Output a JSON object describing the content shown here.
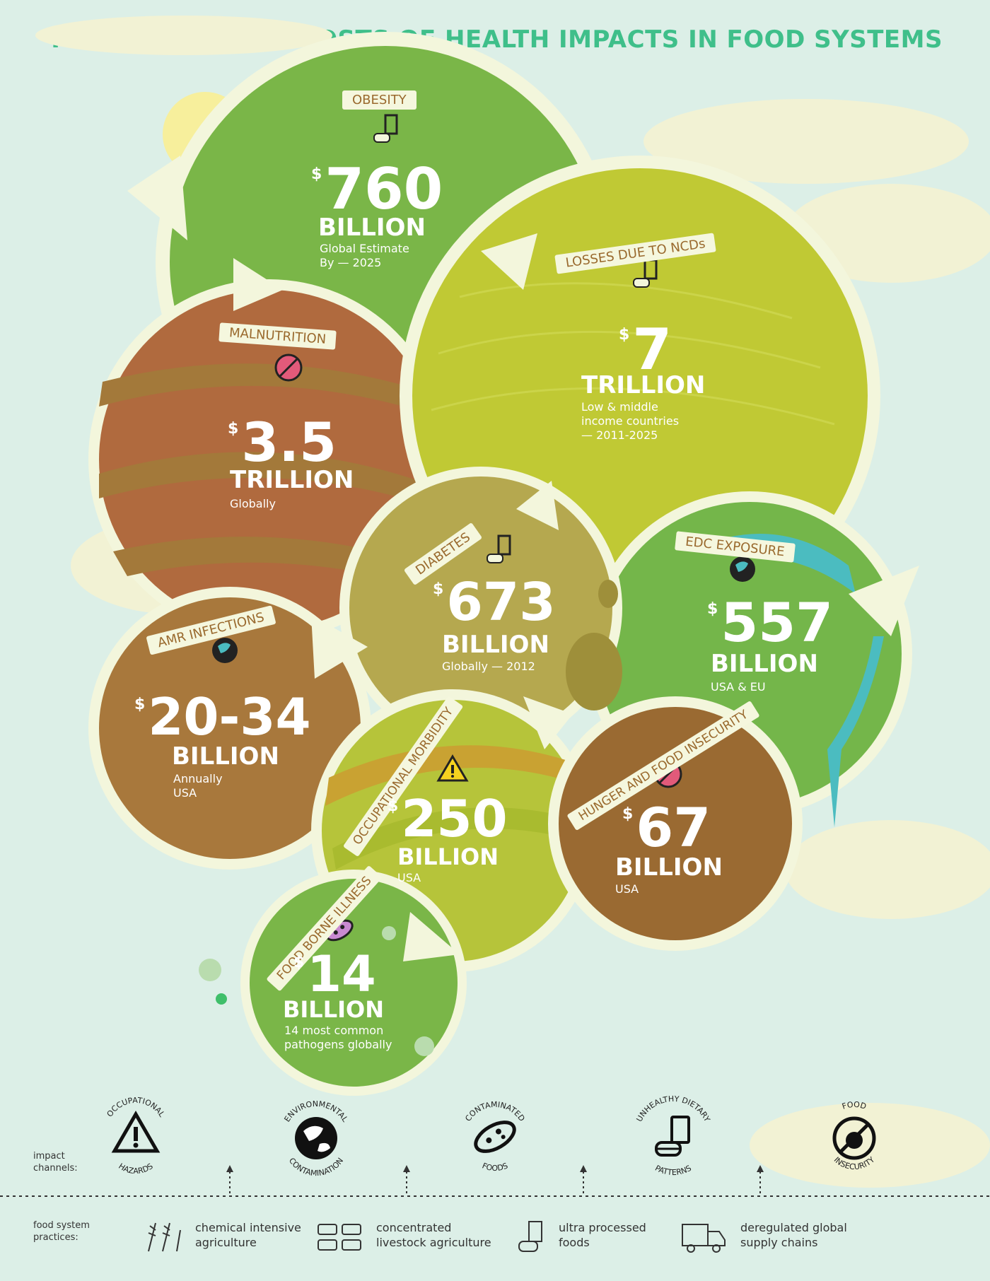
{
  "title": "THE BALLOONING COSTS OF HEALTH IMPACTS IN FOOD SYSTEMS",
  "currency_symbol": "$",
  "colors": {
    "background": "#dcefe7",
    "title": "#3fbf8a",
    "obesity": "#7ab648",
    "ncds": "#c0c934",
    "malnutrition": "#b06a3e",
    "diabetes": "#b5a84f",
    "edc": "#74b64a",
    "amr": "#a8783c",
    "occupational": "#b6c43a",
    "hunger": "#9a6a32",
    "foodborne": "#7ab648",
    "ring": "#f3f6dc",
    "water": "#4bbcc0"
  },
  "bubbles": {
    "obesity": {
      "label": "OBESITY",
      "amount": "760",
      "unit": "BILLION",
      "note": "Global Estimate\nBy — 2025",
      "icon": "unhealthy-diet-icon"
    },
    "ncds": {
      "label": "LOSSES DUE TO NCDs",
      "amount": "7",
      "unit": "TRILLION",
      "note": "Low & middle\nincome countries\n— 2011-2025",
      "icon": "unhealthy-diet-icon"
    },
    "malnutrition": {
      "label": "MALNUTRITION",
      "amount": "3.5",
      "unit": "TRILLION",
      "note": "Globally",
      "icon": "food-insecurity-icon"
    },
    "diabetes": {
      "label": "DIABETES",
      "amount": "673",
      "unit": "BILLION",
      "note": "Globally — 2012",
      "icon": "unhealthy-diet-icon"
    },
    "edc": {
      "label": "EDC EXPOSURE",
      "amount": "557",
      "unit": "BILLION",
      "note": "USA & EU",
      "icon": "environmental-contamination-icon"
    },
    "amr": {
      "label": "AMR INFECTIONS",
      "amount": "20-34",
      "unit": "BILLION",
      "note": "Annually\nUSA",
      "icon": "environmental-contamination-icon"
    },
    "occupational": {
      "label": "OCCUPATIONAL MORBIDITY",
      "amount": "250",
      "unit": "BILLION",
      "note": "USA",
      "icon": "warning-icon"
    },
    "hunger": {
      "label": "HUNGER AND FOOD INSECURITY",
      "amount": "67",
      "unit": "BILLION",
      "note": "USA",
      "icon": "food-insecurity-icon"
    },
    "foodborne": {
      "label": "FOOD BORNE ILLNESS",
      "amount": "14",
      "unit": "BILLION",
      "note": "14 most common\npathogens globally",
      "icon": "pathogen-icon"
    }
  },
  "legend": {
    "impact_channels_label": "impact\nchannels:",
    "practices_label": "food system\npractices:",
    "channels": [
      {
        "top": "OCCUPATIONAL",
        "bottom": "HAZARDS",
        "icon": "warning-icon"
      },
      {
        "top": "ENVIRONMENTAL",
        "bottom": "CONTAMINATION",
        "icon": "environmental-contamination-icon"
      },
      {
        "top": "CONTAMINATED",
        "bottom": "FOODS",
        "icon": "pathogen-icon"
      },
      {
        "top": "UNHEALTHY DIETARY",
        "bottom": "PATTERNS",
        "icon": "unhealthy-diet-icon"
      },
      {
        "top": "FOOD",
        "bottom": "INSECURITY",
        "icon": "food-insecurity-icon"
      }
    ],
    "practices": [
      {
        "text": "chemical intensive\nagriculture",
        "icon": "crops-icon"
      },
      {
        "text": "concentrated\nlivestock agriculture",
        "icon": "livestock-icon"
      },
      {
        "text": "ultra processed\nfoods",
        "icon": "processed-food-icon"
      },
      {
        "text": "deregulated global\nsupply chains",
        "icon": "truck-icon"
      }
    ]
  }
}
